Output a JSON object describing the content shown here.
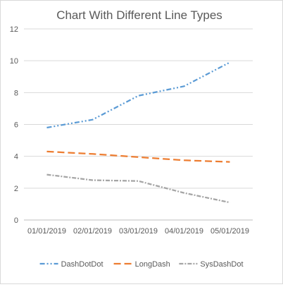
{
  "chart_data": {
    "type": "line",
    "title": "Chart With Different Line Types",
    "categories": [
      "01/01/2019",
      "02/01/2019",
      "03/01/2019",
      "04/01/2019",
      "05/01/2019"
    ],
    "ylim": [
      0,
      12
    ],
    "yticks": [
      "0",
      "2",
      "4",
      "6",
      "8",
      "10",
      "12"
    ],
    "grid": true,
    "legend_position": "bottom",
    "series": [
      {
        "name": "DashDotDot",
        "values": [
          5.8,
          6.3,
          7.8,
          8.4,
          9.9
        ],
        "color": "#5b9bd5",
        "dash": "dash-dot-dot"
      },
      {
        "name": "LongDash",
        "values": [
          4.3,
          4.15,
          3.95,
          3.75,
          3.65
        ],
        "color": "#ed7d31",
        "dash": "long-dash"
      },
      {
        "name": "SysDashDot",
        "values": [
          2.85,
          2.5,
          2.45,
          1.7,
          1.1
        ],
        "color": "#a5a5a5",
        "dash": "sys-dash-dot"
      }
    ]
  }
}
